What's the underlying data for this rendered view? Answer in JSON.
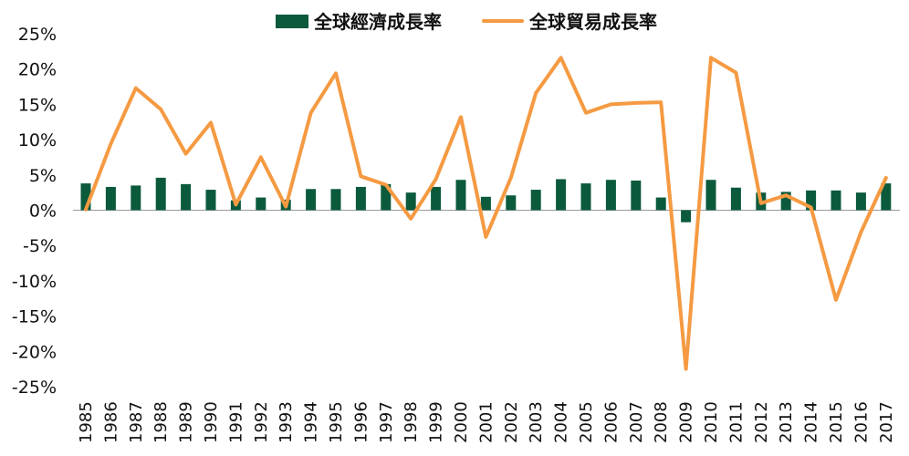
{
  "chart_data": {
    "type": "bar",
    "categories": [
      "1985",
      "1986",
      "1987",
      "1988",
      "1989",
      "1990",
      "1991",
      "1992",
      "1993",
      "1994",
      "1995",
      "1996",
      "1997",
      "1998",
      "1999",
      "2000",
      "2001",
      "2002",
      "2003",
      "2004",
      "2005",
      "2006",
      "2007",
      "2008",
      "2009",
      "2010",
      "2011",
      "2012",
      "2013",
      "2014",
      "2015",
      "2016",
      "2017"
    ],
    "series": [
      {
        "name": "全球經濟成長率",
        "type": "bar",
        "color": "#0b5a3c",
        "values": [
          3.8,
          3.3,
          3.5,
          4.6,
          3.7,
          2.9,
          1.4,
          1.8,
          1.5,
          3.0,
          3.0,
          3.3,
          3.7,
          2.5,
          3.3,
          4.3,
          1.9,
          2.1,
          2.9,
          4.4,
          3.8,
          4.3,
          4.2,
          1.8,
          -1.7,
          4.3,
          3.2,
          2.5,
          2.6,
          2.8,
          2.8,
          2.5,
          3.8
        ]
      },
      {
        "name": "全球貿易成長率",
        "type": "line",
        "color": "#f59a42",
        "values": [
          0.1,
          9.4,
          17.3,
          14.3,
          8.0,
          12.4,
          0.8,
          7.5,
          0.5,
          13.8,
          19.4,
          4.8,
          3.6,
          -1.2,
          4.4,
          13.2,
          -3.8,
          4.6,
          16.6,
          21.6,
          13.8,
          15.0,
          15.2,
          15.3,
          -22.5,
          21.6,
          19.5,
          1.0,
          2.1,
          0.4,
          -12.7,
          -3.1,
          4.6
        ]
      }
    ],
    "ylim": [
      -25,
      25
    ],
    "yticks": [
      -25,
      -20,
      -15,
      -10,
      -5,
      0,
      5,
      10,
      15,
      20,
      25
    ],
    "ytick_suffix": "%",
    "legend": "top-center",
    "grid": false,
    "xlabel": "",
    "ylabel": "",
    "title": ""
  }
}
